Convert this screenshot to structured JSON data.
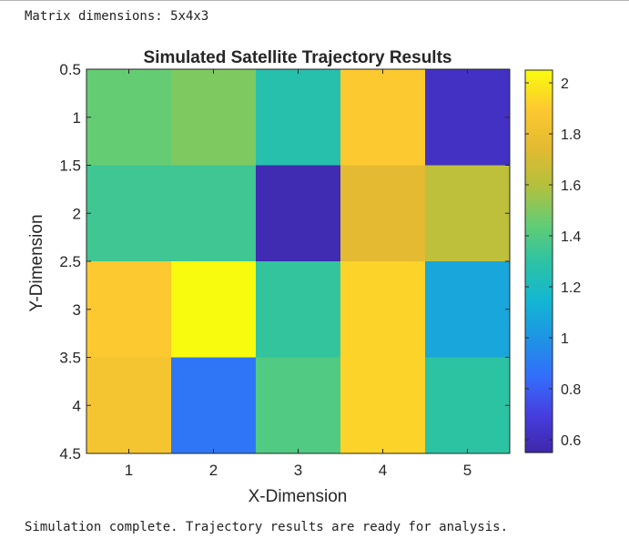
{
  "console": {
    "line1": "Matrix dimensions: 5x4x3",
    "line2": "Simulation complete. Trajectory results are ready for analysis."
  },
  "chart_data": {
    "type": "heatmap",
    "title": "Simulated Satellite Trajectory Results",
    "xlabel": "X-Dimension",
    "ylabel": "Y-Dimension",
    "xlim": [
      0.5,
      5.5
    ],
    "ylim": [
      0.5,
      4.5
    ],
    "y_reversed": true,
    "x_ticks": [
      1,
      2,
      3,
      4,
      5
    ],
    "x_tick_labels": [
      "1",
      "2",
      "3",
      "4",
      "5"
    ],
    "y_ticks": [
      0.5,
      1,
      1.5,
      2,
      2.5,
      3,
      3.5,
      4,
      4.5
    ],
    "y_tick_labels": [
      "0.5",
      "1",
      "1.5",
      "2",
      "2.5",
      "3",
      "3.5",
      "4",
      "4.5"
    ],
    "values": [
      [
        1.45,
        1.5,
        1.27,
        1.9,
        0.62
      ],
      [
        1.35,
        1.35,
        0.58,
        1.75,
        1.63
      ],
      [
        1.9,
        2.05,
        1.32,
        1.93,
        1.08
      ],
      [
        1.85,
        0.88,
        1.4,
        1.93,
        1.3
      ]
    ],
    "colorbar": {
      "clim": [
        0.55,
        2.05
      ],
      "ticks": [
        0.6,
        0.8,
        1,
        1.2,
        1.4,
        1.6,
        1.8,
        2
      ],
      "tick_labels": [
        "0.6",
        "0.8",
        "1",
        "1.2",
        "1.4",
        "1.6",
        "1.8",
        "2"
      ],
      "colormap": "parula"
    },
    "grid": false
  }
}
